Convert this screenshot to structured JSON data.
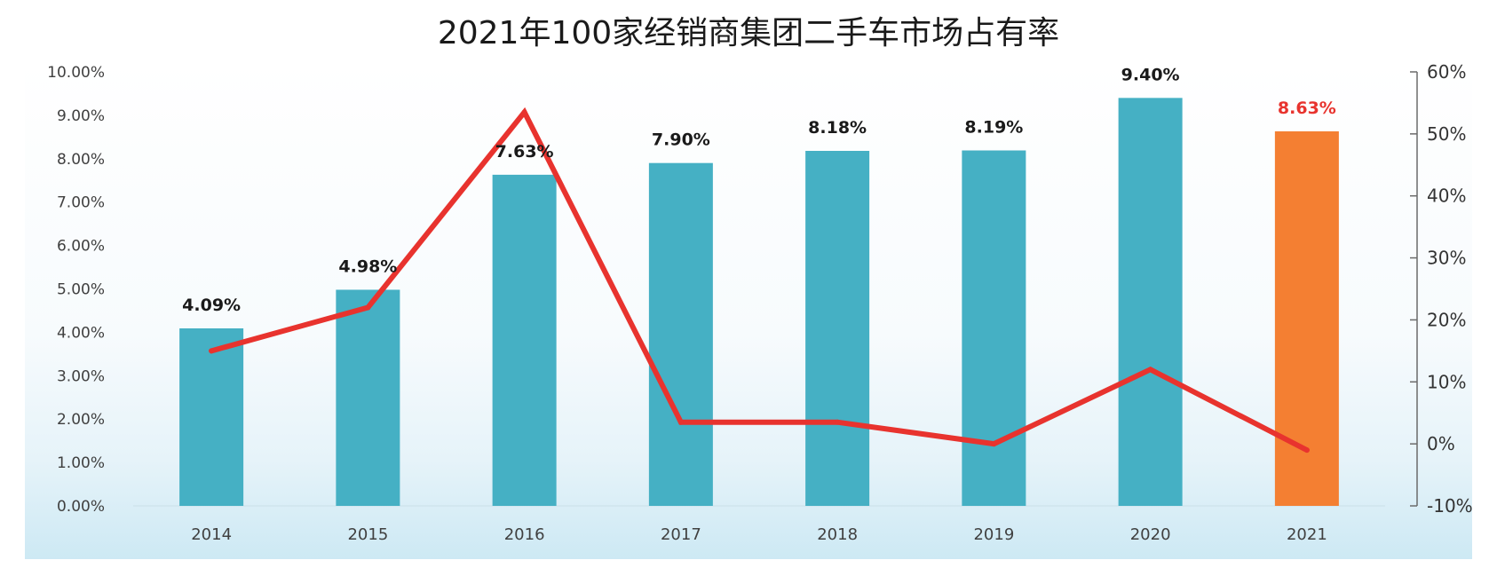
{
  "chart_data": {
    "type": "bar",
    "title": "2021年100家经销商集团二手车市场占有率",
    "categories": [
      "2014",
      "2015",
      "2016",
      "2017",
      "2018",
      "2019",
      "2020",
      "2021"
    ],
    "series": [
      {
        "type": "bar",
        "axis": "left",
        "values": [
          4.09,
          4.98,
          7.63,
          7.9,
          8.18,
          8.19,
          9.4,
          8.63
        ],
        "data_labels": [
          "4.09%",
          "4.98%",
          "7.63%",
          "7.90%",
          "8.18%",
          "8.19%",
          "9.40%",
          "8.63%"
        ],
        "colors": [
          "#45b0c4",
          "#45b0c4",
          "#45b0c4",
          "#45b0c4",
          "#45b0c4",
          "#45b0c4",
          "#45b0c4",
          "#f47f32"
        ]
      },
      {
        "type": "line",
        "axis": "right",
        "values": [
          15,
          22,
          53.5,
          3.5,
          3.5,
          0,
          12,
          -1
        ],
        "color": "#e8332e"
      }
    ],
    "y_left": {
      "min": 0,
      "max": 10,
      "step": 1,
      "tick_labels": [
        "0.00%",
        "1.00%",
        "2.00%",
        "3.00%",
        "4.00%",
        "5.00%",
        "6.00%",
        "7.00%",
        "8.00%",
        "9.00%",
        "10.00%"
      ]
    },
    "y_right": {
      "min": -10,
      "max": 60,
      "step": 10,
      "tick_labels": [
        "-10%",
        "0%",
        "10%",
        "20%",
        "30%",
        "40%",
        "50%",
        "60%"
      ]
    },
    "label_colors": {
      "default": "#1a1a1a",
      "highlight": "#e8332e"
    },
    "grid": false,
    "legend": "none"
  }
}
